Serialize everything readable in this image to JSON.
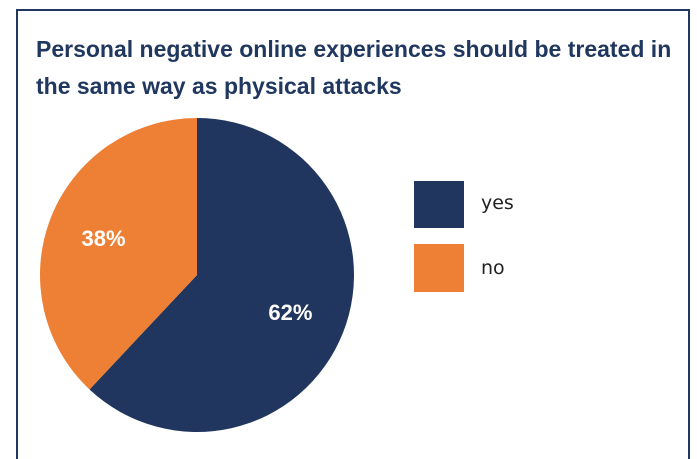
{
  "chart_data": {
    "type": "pie",
    "title": "Personal negative online experiences should be treated in the same way as physical attacks",
    "categories": [
      "yes",
      "no"
    ],
    "values": [
      62,
      38
    ],
    "labels": [
      "62%",
      "38%"
    ],
    "colors": [
      "#21365e",
      "#ee8035"
    ],
    "start": "12 o'clock",
    "direction": "clockwise",
    "legend": "right"
  }
}
